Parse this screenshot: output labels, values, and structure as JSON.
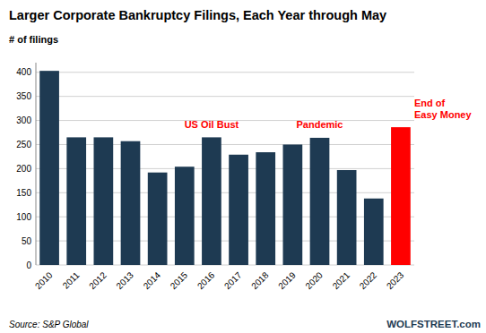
{
  "chart_data": {
    "type": "bar",
    "title": "Larger Corporate Bankruptcy Filings, Each Year through May",
    "y_label": "# of filings",
    "categories": [
      "2010",
      "2011",
      "2012",
      "2013",
      "2014",
      "2015",
      "2016",
      "2017",
      "2018",
      "2019",
      "2020",
      "2021",
      "2022",
      "2023"
    ],
    "values": [
      403,
      265,
      265,
      257,
      192,
      204,
      265,
      229,
      234,
      250,
      264,
      197,
      138,
      286
    ],
    "colors": [
      "#1e3a52",
      "#1e3a52",
      "#1e3a52",
      "#1e3a52",
      "#1e3a52",
      "#1e3a52",
      "#1e3a52",
      "#1e3a52",
      "#1e3a52",
      "#1e3a52",
      "#1e3a52",
      "#1e3a52",
      "#1e3a52",
      "#ff0000"
    ],
    "ylim": [
      0,
      420
    ],
    "yticks": [
      0,
      50,
      100,
      150,
      200,
      250,
      300,
      350,
      400
    ],
    "grid": true,
    "annotations": [
      {
        "text": "US Oil Bust",
        "x": "2016",
        "y": 278,
        "color": "#ff0000"
      },
      {
        "text": "Pandemic",
        "x": "2020",
        "y": 278,
        "color": "#ff0000"
      },
      {
        "text": "End of\nEasy Money",
        "x": "2023",
        "y": 300,
        "color": "#ff0000"
      }
    ],
    "source": "Source: S&P Global",
    "watermark": "WOLFSTREET.com"
  }
}
